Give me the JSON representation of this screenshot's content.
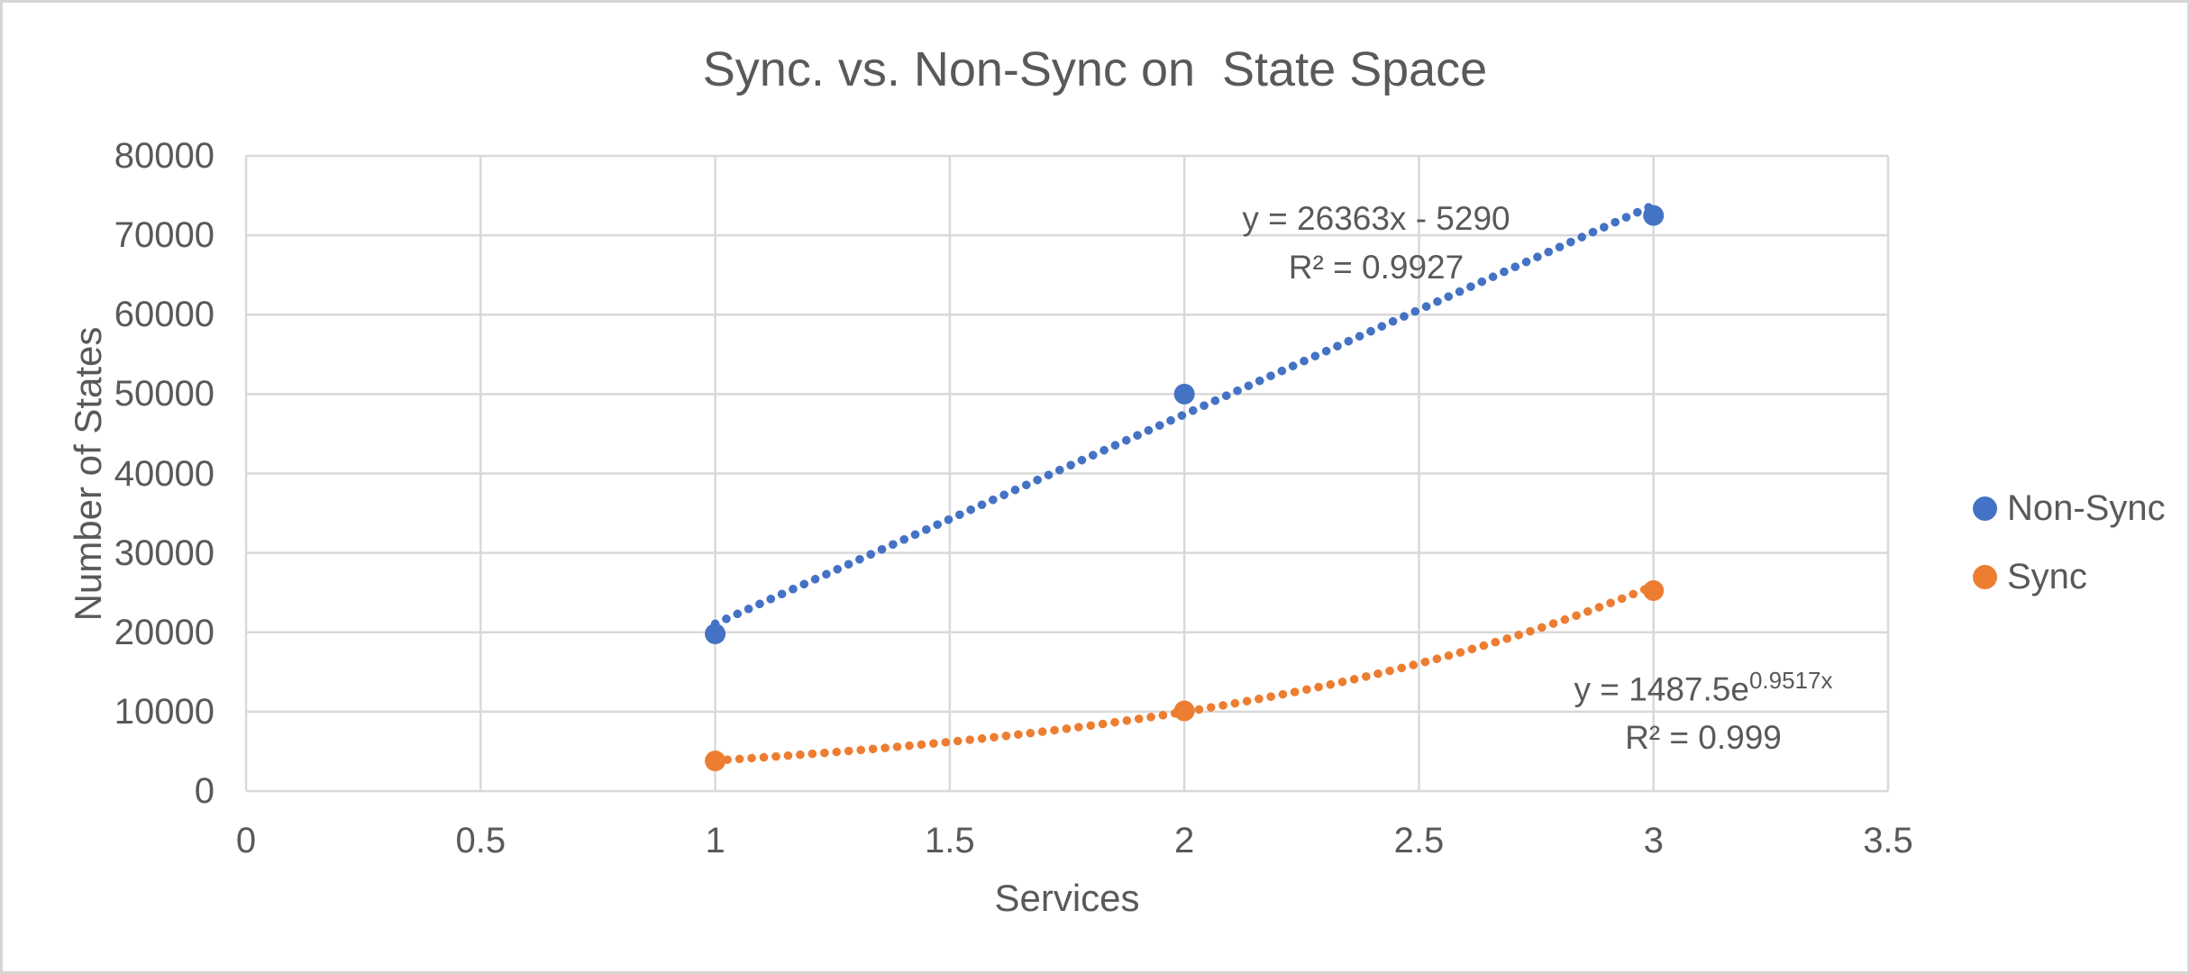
{
  "chart_data": {
    "type": "scatter",
    "title": "Sync. vs. Non-Sync on  State Space",
    "xlabel": "Services",
    "ylabel": "Number of States",
    "xlim": [
      0,
      3.5
    ],
    "ylim": [
      0,
      80000
    ],
    "x_ticks": [
      "0",
      "0.5",
      "1",
      "1.5",
      "2",
      "2.5",
      "3",
      "3.5"
    ],
    "y_ticks": [
      "0",
      "10000",
      "20000",
      "30000",
      "40000",
      "50000",
      "60000",
      "70000",
      "80000"
    ],
    "grid": true,
    "legend_position": "right",
    "series": [
      {
        "name": "Non-Sync",
        "color": "#4472C4",
        "x": [
          1,
          2,
          3
        ],
        "values": [
          19800,
          50000,
          72500
        ],
        "trendline": {
          "type": "linear",
          "slope": 26363,
          "intercept": -5290,
          "x_range": [
            1,
            3
          ],
          "equation_label": "y = 26363x - 5290",
          "r2_label": "R² = 0.9927"
        }
      },
      {
        "name": "Sync",
        "color": "#ED7D31",
        "x": [
          1,
          2,
          3
        ],
        "values": [
          3800,
          10100,
          25250
        ],
        "trendline": {
          "type": "exponential",
          "coefficient": 1487.5,
          "exponent": 0.9517,
          "x_range": [
            1,
            3
          ],
          "equation_base": "y = 1487.5e",
          "equation_superscript": "0.9517x",
          "r2_label": "R² = 0.999"
        }
      }
    ],
    "colors": {
      "text": "#595959",
      "gridline": "#D9D9D9",
      "frame": "#D6D6D6",
      "background": "#FFFFFF"
    }
  }
}
